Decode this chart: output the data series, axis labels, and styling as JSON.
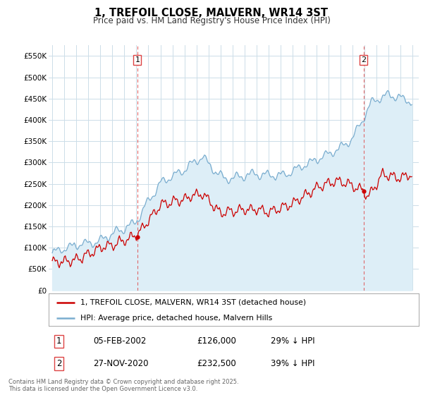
{
  "title": "1, TREFOIL CLOSE, MALVERN, WR14 3ST",
  "subtitle": "Price paid vs. HM Land Registry's House Price Index (HPI)",
  "legend_entries": [
    "1, TREFOIL CLOSE, MALVERN, WR14 3ST (detached house)",
    "HPI: Average price, detached house, Malvern Hills"
  ],
  "sale1_date": "05-FEB-2002",
  "sale1_price": "£126,000",
  "sale1_hpi": "29% ↓ HPI",
  "sale1_x": 2002.09,
  "sale1_y": 126000,
  "sale2_date": "27-NOV-2020",
  "sale2_price": "£232,500",
  "sale2_hpi": "39% ↓ HPI",
  "sale2_x": 2020.9,
  "sale2_y": 232500,
  "red_color": "#cc0000",
  "blue_color": "#7aadcf",
  "blue_fill": "#ddeef7",
  "dashed_color": "#dd4444",
  "background_color": "#ffffff",
  "grid_color": "#ccdde8",
  "ylim": [
    0,
    575000
  ],
  "xlim_start": 1994.7,
  "xlim_end": 2025.5,
  "footer_text": "Contains HM Land Registry data © Crown copyright and database right 2025.\nThis data is licensed under the Open Government Licence v3.0.",
  "yticks": [
    0,
    50000,
    100000,
    150000,
    200000,
    250000,
    300000,
    350000,
    400000,
    450000,
    500000,
    550000
  ],
  "ytick_labels": [
    "£0",
    "£50K",
    "£100K",
    "£150K",
    "£200K",
    "£250K",
    "£300K",
    "£350K",
    "£400K",
    "£450K",
    "£500K",
    "£550K"
  ],
  "xticks": [
    1995,
    1996,
    1997,
    1998,
    1999,
    2000,
    2001,
    2002,
    2003,
    2004,
    2005,
    2006,
    2007,
    2008,
    2009,
    2010,
    2011,
    2012,
    2013,
    2014,
    2015,
    2016,
    2017,
    2018,
    2019,
    2020,
    2021,
    2022,
    2023,
    2024,
    2025
  ]
}
